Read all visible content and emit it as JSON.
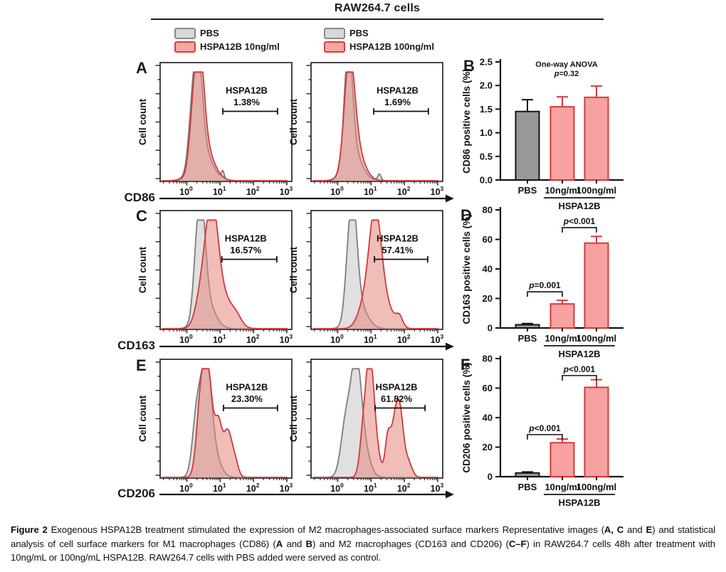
{
  "figure": {
    "title": "RAW264.7 cells",
    "cell_line": "RAW264.7",
    "legends": [
      {
        "entries": [
          {
            "label": "PBS",
            "fill": "#d8d8d8",
            "border": "#8a8a8a"
          },
          {
            "label": "HSPA12B 10ng/ml",
            "fill": "#f5a7a3",
            "border": "#d4403c"
          }
        ]
      },
      {
        "entries": [
          {
            "label": "PBS",
            "fill": "#d8d8d8",
            "border": "#8a8a8a"
          },
          {
            "label": "HSPA12B 100ng/ml",
            "fill": "#f5a7a3",
            "border": "#d4403c"
          }
        ]
      }
    ],
    "panel_letters": [
      "A",
      "B",
      "C",
      "D",
      "E",
      "F"
    ],
    "markers": [
      {
        "id": "CD86",
        "label": "CD86"
      },
      {
        "id": "CD163",
        "label": "CD163"
      },
      {
        "id": "CD206",
        "label": "CD206"
      }
    ],
    "colors": {
      "pbs_stroke": "#7d7d7d",
      "pbs_fill": "rgba(198,198,198,0.55)",
      "treated_stroke": "#cf3a3a",
      "treated_fill": "rgba(228,134,128,0.55)",
      "bar_gray_fill": "#97979c",
      "bar_gray_stroke": "#141414",
      "bar_pink_fill": "#f8a1a1",
      "bar_pink_stroke": "#d63a3a",
      "axis": "#141414"
    }
  },
  "chart_data": [
    {
      "type": "histogram",
      "id": "A1",
      "panel": "A",
      "marker": "CD86",
      "treatment": "HSPA12B 10ng/ml",
      "ylabel": "Cell count",
      "x_tick_exponents": [
        0,
        1,
        2,
        3
      ],
      "gate": {
        "label": "HSPA12B",
        "value": "1.38%",
        "log_from": 1.08,
        "log_to": 2.72
      },
      "series": [
        {
          "name": "PBS",
          "color_key": "pbs",
          "peaks": [
            [
              0.32,
              0.13,
              0.97
            ],
            [
              0.45,
              0.28,
              0.3
            ],
            [
              0.12,
              0.1,
              0.25
            ],
            [
              1.08,
              0.04,
              0.07
            ]
          ]
        },
        {
          "name": "HSPA12B 10ng/ml",
          "color_key": "treated",
          "peaks": [
            [
              0.36,
              0.14,
              1.0
            ],
            [
              0.5,
              0.28,
              0.32
            ],
            [
              0.15,
              0.1,
              0.22
            ]
          ]
        }
      ]
    },
    {
      "type": "histogram",
      "id": "A2",
      "panel": "A",
      "marker": "CD86",
      "treatment": "HSPA12B 100ng/ml",
      "ylabel": "Cell count",
      "x_tick_exponents": [
        0,
        1,
        2,
        3
      ],
      "gate": {
        "label": "HSPA12B",
        "value": "1.69%",
        "log_from": 1.08,
        "log_to": 2.72
      },
      "series": [
        {
          "name": "PBS",
          "color_key": "pbs",
          "peaks": [
            [
              0.32,
              0.12,
              1.0
            ],
            [
              0.45,
              0.25,
              0.28
            ],
            [
              1.25,
              0.05,
              0.06
            ]
          ]
        },
        {
          "name": "HSPA12B 100ng/ml",
          "color_key": "treated",
          "peaks": [
            [
              0.35,
              0.15,
              0.93
            ],
            [
              0.52,
              0.25,
              0.3
            ]
          ]
        }
      ]
    },
    {
      "type": "histogram",
      "id": "C1",
      "panel": "C",
      "marker": "CD163",
      "treatment": "HSPA12B 10ng/ml",
      "ylabel": "Cell count",
      "x_tick_exponents": [
        0,
        1,
        2,
        3
      ],
      "gate": {
        "label": "HSPA12B",
        "value": "16.57%",
        "log_from": 1.05,
        "log_to": 2.7
      },
      "series": [
        {
          "name": "PBS",
          "color_key": "pbs",
          "peaks": [
            [
              0.42,
              0.13,
              0.97
            ],
            [
              0.58,
              0.25,
              0.25
            ],
            [
              0.25,
              0.1,
              0.2
            ]
          ]
        },
        {
          "name": "HSPA12B 10ng/ml",
          "color_key": "treated",
          "peaks": [
            [
              0.75,
              0.18,
              0.93
            ],
            [
              1.05,
              0.3,
              0.3
            ],
            [
              0.45,
              0.18,
              0.3
            ],
            [
              1.5,
              0.15,
              0.06
            ]
          ]
        }
      ]
    },
    {
      "type": "histogram",
      "id": "C2",
      "panel": "C",
      "marker": "CD163",
      "treatment": "HSPA12B 100ng/ml",
      "ylabel": "Cell count",
      "x_tick_exponents": [
        0,
        1,
        2,
        3
      ],
      "gate": {
        "label": "HSPA12B",
        "value": "57.41%",
        "log_from": 1.1,
        "log_to": 2.7
      },
      "series": [
        {
          "name": "PBS",
          "color_key": "pbs",
          "peaks": [
            [
              0.45,
              0.13,
              0.97
            ],
            [
              0.62,
              0.25,
              0.22
            ],
            [
              0.28,
              0.1,
              0.2
            ]
          ]
        },
        {
          "name": "HSPA12B 100ng/ml",
          "color_key": "treated",
          "peaks": [
            [
              1.12,
              0.18,
              0.93
            ],
            [
              1.4,
              0.25,
              0.22
            ],
            [
              0.8,
              0.2,
              0.2
            ],
            [
              1.85,
              0.1,
              0.09
            ]
          ]
        }
      ]
    },
    {
      "type": "histogram",
      "id": "E1",
      "panel": "E",
      "marker": "CD206",
      "treatment": "HSPA12B 10ng/ml",
      "ylabel": "Cell count",
      "x_tick_exponents": [
        0,
        1,
        2,
        3
      ],
      "gate": {
        "label": "HSPA12B",
        "value": "23.30%",
        "log_from": 1.1,
        "log_to": 2.72
      },
      "series": [
        {
          "name": "PBS",
          "color_key": "pbs",
          "peaks": [
            [
              0.58,
              0.15,
              0.95
            ],
            [
              0.3,
              0.13,
              0.55
            ],
            [
              0.8,
              0.2,
              0.2
            ]
          ]
        },
        {
          "name": "HSPA12B 10ng/ml",
          "color_key": "treated",
          "peaks": [
            [
              0.62,
              0.15,
              0.98
            ],
            [
              0.4,
              0.12,
              0.5
            ],
            [
              0.95,
              0.1,
              0.42
            ],
            [
              1.22,
              0.13,
              0.42
            ],
            [
              1.45,
              0.1,
              0.12
            ]
          ]
        }
      ]
    },
    {
      "type": "histogram",
      "id": "E2",
      "panel": "E",
      "marker": "CD206",
      "treatment": "HSPA12B 100ng/ml",
      "ylabel": "Cell count",
      "x_tick_exponents": [
        0,
        1,
        2,
        3
      ],
      "gate": {
        "label": "HSPA12B",
        "value": "61.82%",
        "log_from": 1.12,
        "log_to": 2.62
      },
      "series": [
        {
          "name": "PBS",
          "color_key": "pbs",
          "peaks": [
            [
              0.55,
              0.15,
              0.95
            ],
            [
              0.25,
              0.15,
              0.5
            ],
            [
              0.78,
              0.18,
              0.25
            ]
          ]
        },
        {
          "name": "HSPA12B 100ng/ml",
          "color_key": "treated",
          "peaks": [
            [
              0.95,
              0.12,
              0.9
            ],
            [
              1.1,
              0.15,
              0.3
            ],
            [
              0.75,
              0.1,
              0.3
            ],
            [
              1.5,
              0.08,
              0.32
            ],
            [
              1.72,
              0.12,
              0.5
            ],
            [
              1.88,
              0.1,
              0.42
            ],
            [
              2.1,
              0.12,
              0.15
            ]
          ]
        }
      ]
    },
    {
      "type": "bar",
      "id": "B",
      "panel": "B",
      "ylabel": "CD86 positive cells (%)",
      "categories": [
        "PBS",
        "10ng/ml",
        "100ng/ml"
      ],
      "group_label": "HSPA12B",
      "values": [
        1.45,
        1.55,
        1.75
      ],
      "errors": [
        0.25,
        0.21,
        0.24
      ],
      "bar_styles": [
        "gray",
        "pink",
        "pink"
      ],
      "yticks": [
        "0.0",
        "0.5",
        "1.0",
        "1.5",
        "2.0",
        "2.5"
      ],
      "ymax": 2.5,
      "annotation": {
        "lines": [
          "One-way ANOVA",
          "p=0.32"
        ]
      },
      "significance": []
    },
    {
      "type": "bar",
      "id": "D",
      "panel": "D",
      "ylabel": "CD163 positive cells (%)",
      "categories": [
        "PBS",
        "10ng/ml",
        "100ng/ml"
      ],
      "group_label": "HSPA12B",
      "values": [
        2.2,
        16.3,
        57.5
      ],
      "errors": [
        0.8,
        2.4,
        4.5
      ],
      "bar_styles": [
        "gray",
        "pink",
        "pink"
      ],
      "yticks": [
        "0",
        "20",
        "40",
        "60",
        "80"
      ],
      "ymax": 80,
      "annotation": null,
      "significance": [
        {
          "pair": [
            0,
            1
          ],
          "label": "p=0.001",
          "bracket_y": 24.5
        },
        {
          "pair": [
            1,
            2
          ],
          "label": "p<0.001",
          "bracket_y": 68
        }
      ]
    },
    {
      "type": "bar",
      "id": "F",
      "panel": "F",
      "ylabel": "CD206 positive cells (%)",
      "categories": [
        "PBS",
        "10ng/ml",
        "100ng/ml"
      ],
      "group_label": "HSPA12B",
      "values": [
        2.5,
        23,
        60.5
      ],
      "errors": [
        0.7,
        2.5,
        5.2
      ],
      "bar_styles": [
        "gray",
        "pink",
        "pink"
      ],
      "yticks": [
        "0",
        "20",
        "40",
        "60",
        "80"
      ],
      "ymax": 80,
      "annotation": null,
      "significance": [
        {
          "pair": [
            0,
            1
          ],
          "label": "p<0.001",
          "bracket_y": 28.5
        },
        {
          "pair": [
            1,
            2
          ],
          "label": "p<0.001",
          "bracket_y": 68.5
        }
      ]
    }
  ],
  "caption": {
    "segments": [
      {
        "text": "Figure 2 ",
        "bold": true
      },
      {
        "text": "Exogenous HSPA12B treatment stimulated the expression of M2 macrophages-associated surface markers Representative images (",
        "bold": false
      },
      {
        "text": "A, C",
        "bold": true
      },
      {
        "text": " and ",
        "bold": false
      },
      {
        "text": "E",
        "bold": true
      },
      {
        "text": ") and statistical analysis of cell surface markers for M1 macrophages (CD86) (",
        "bold": false
      },
      {
        "text": "A",
        "bold": true
      },
      {
        "text": " and ",
        "bold": false
      },
      {
        "text": "B",
        "bold": true
      },
      {
        "text": ") and M2 macrophages (CD163 and CD206) (",
        "bold": false
      },
      {
        "text": "C–F",
        "bold": true
      },
      {
        "text": ") in RAW264.7 cells 48h after treatment with 10ng/mL or 100ng/mL HSPA12B. RAW264.7 cells with PBS added were served as control.",
        "bold": false
      }
    ]
  }
}
